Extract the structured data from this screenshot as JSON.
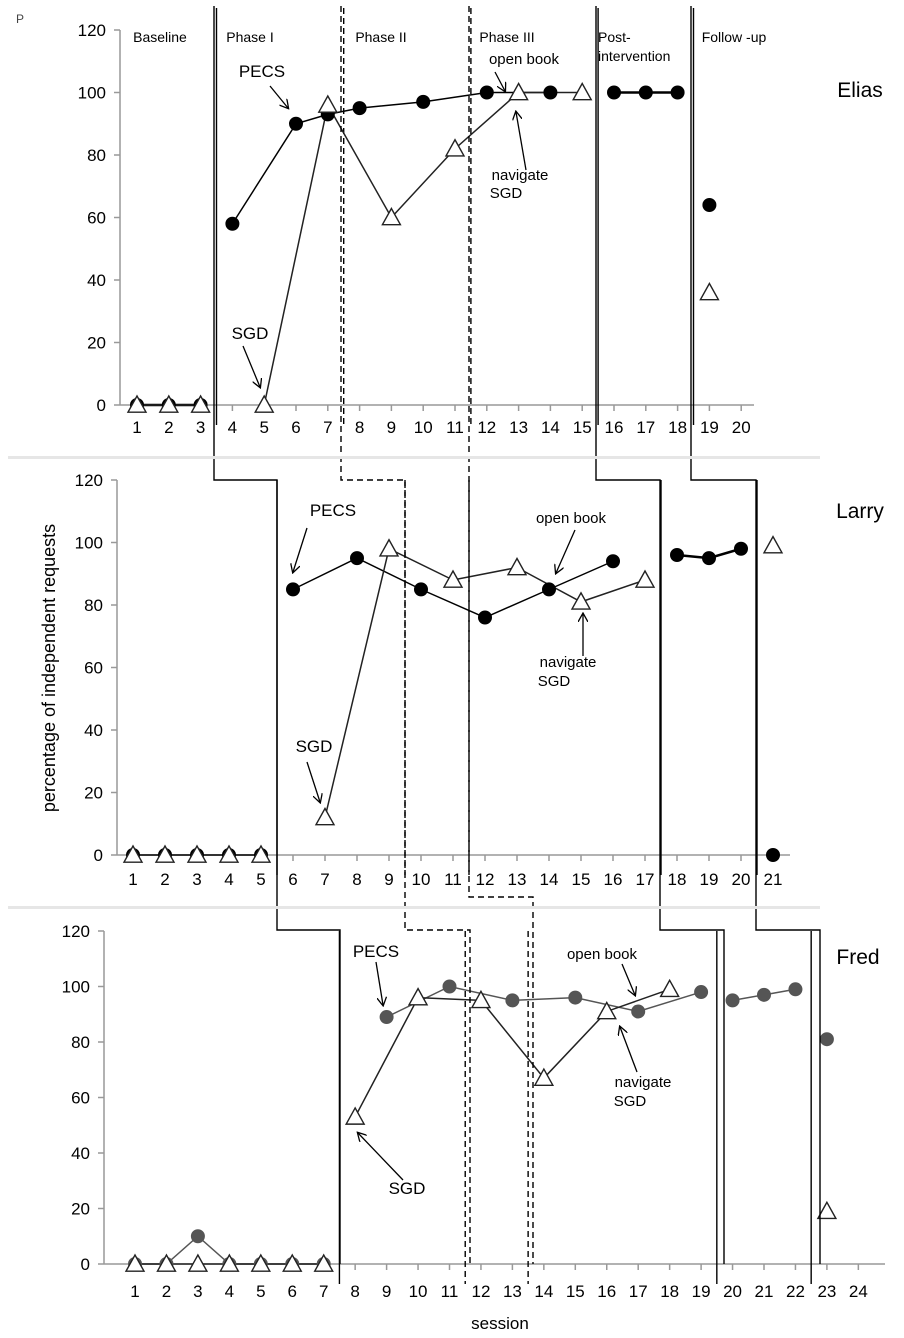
{
  "corner_mark": "P",
  "ylabel": "percentage of independent requests",
  "xlabel": "session",
  "phase_labels": [
    {
      "text": "Baseline"
    },
    {
      "text": "Phase I"
    },
    {
      "text": "Phase II"
    },
    {
      "text": "Phase III"
    },
    {
      "text": "Post-",
      "text2": "intervention"
    },
    {
      "text": "Follow -up"
    }
  ],
  "chart_data": [
    {
      "type": "line",
      "participant": "Elias",
      "ylim": [
        0,
        120
      ],
      "yticks": [
        0,
        20,
        40,
        60,
        80,
        100,
        120
      ],
      "sessions": [
        1,
        2,
        3,
        4,
        5,
        6,
        7,
        8,
        9,
        10,
        11,
        12,
        13,
        14,
        15,
        16,
        17,
        18,
        19,
        20
      ],
      "series": [
        {
          "name": "PECS",
          "marker": "circle",
          "color": "#000000",
          "segments": [
            [
              [
                1,
                0
              ],
              [
                2,
                0
              ],
              [
                3,
                0
              ]
            ],
            [
              [
                4,
                58
              ],
              [
                6,
                90
              ],
              [
                7,
                93
              ],
              [
                8,
                95
              ],
              [
                10,
                97
              ],
              [
                12,
                100
              ],
              [
                14,
                100
              ]
            ],
            [
              [
                16,
                100
              ],
              [
                17,
                100
              ],
              [
                18,
                100
              ]
            ],
            [
              [
                19,
                64
              ]
            ]
          ]
        },
        {
          "name": "SGD",
          "marker": "triangle",
          "segments": [
            [
              [
                1,
                0
              ],
              [
                2,
                0
              ],
              [
                3,
                0
              ]
            ],
            [
              [
                5,
                0
              ],
              [
                7,
                96
              ],
              [
                9,
                60
              ],
              [
                11,
                82
              ],
              [
                13,
                100
              ],
              [
                15,
                100
              ]
            ],
            [
              [
                19,
                36
              ]
            ]
          ]
        }
      ],
      "phase_changes": [
        {
          "after": 3.5,
          "style": "solid"
        },
        {
          "after": 7.5,
          "style": "dashed"
        },
        {
          "after": 11.5,
          "style": "dashed"
        },
        {
          "after": 15.5,
          "style": "solid"
        },
        {
          "after": 18.5,
          "style": "solid"
        }
      ],
      "annotations": [
        {
          "text": "PECS"
        },
        {
          "text": "SGD"
        },
        {
          "text": "open book"
        },
        {
          "text": "navigate"
        },
        {
          "text": "SGD"
        }
      ]
    },
    {
      "type": "line",
      "participant": "Larry",
      "ylim": [
        0,
        120
      ],
      "yticks": [
        0,
        20,
        40,
        60,
        80,
        100,
        120
      ],
      "sessions": [
        1,
        2,
        3,
        4,
        5,
        6,
        7,
        8,
        9,
        10,
        11,
        12,
        13,
        14,
        15,
        16,
        17,
        18,
        19,
        20,
        21
      ],
      "series": [
        {
          "name": "PECS",
          "marker": "circle",
          "color": "#000000",
          "segments": [
            [
              [
                1,
                0
              ],
              [
                2,
                0
              ],
              [
                3,
                0
              ],
              [
                4,
                0
              ],
              [
                5,
                0
              ]
            ],
            [
              [
                6,
                85
              ],
              [
                8,
                95
              ],
              [
                10,
                85
              ],
              [
                12,
                76
              ],
              [
                14,
                85
              ],
              [
                16,
                94
              ]
            ],
            [
              [
                18,
                96
              ],
              [
                19,
                95
              ],
              [
                20,
                98
              ]
            ],
            [
              [
                21,
                0
              ]
            ]
          ]
        },
        {
          "name": "SGD",
          "marker": "triangle",
          "segments": [
            [
              [
                1,
                0
              ],
              [
                2,
                0
              ],
              [
                3,
                0
              ],
              [
                4,
                0
              ],
              [
                5,
                0
              ]
            ],
            [
              [
                7,
                12
              ],
              [
                9,
                98
              ],
              [
                11,
                88
              ],
              [
                13,
                92
              ],
              [
                15,
                81
              ],
              [
                17,
                88
              ]
            ],
            [
              [
                21,
                99
              ]
            ]
          ]
        }
      ],
      "phase_changes": [
        {
          "after": 5.5,
          "style": "solid"
        },
        {
          "after": 9.5,
          "style": "dashed"
        },
        {
          "after": 11.5,
          "style": "dashed"
        },
        {
          "after": 17.5,
          "style": "solid"
        },
        {
          "after": 20.5,
          "style": "solid"
        }
      ],
      "annotations": [
        {
          "text": "PECS"
        },
        {
          "text": "SGD"
        },
        {
          "text": "open book"
        },
        {
          "text": "navigate"
        },
        {
          "text": "SGD"
        }
      ]
    },
    {
      "type": "line",
      "participant": "Fred",
      "ylim": [
        0,
        120
      ],
      "yticks": [
        0,
        20,
        40,
        60,
        80,
        100,
        120
      ],
      "sessions": [
        1,
        2,
        3,
        4,
        5,
        6,
        7,
        8,
        9,
        10,
        11,
        12,
        13,
        14,
        15,
        16,
        17,
        18,
        19,
        20,
        21,
        22,
        23,
        24
      ],
      "series": [
        {
          "name": "PECS",
          "marker": "circle",
          "color": "#555555",
          "segments": [
            [
              [
                1,
                0
              ],
              [
                2,
                0
              ],
              [
                3,
                10
              ],
              [
                4,
                0
              ],
              [
                5,
                0
              ],
              [
                6,
                0
              ],
              [
                7,
                0
              ]
            ],
            [
              [
                9,
                89
              ],
              [
                11,
                100
              ],
              [
                13,
                95
              ],
              [
                15,
                96
              ],
              [
                17,
                91
              ],
              [
                19,
                98
              ]
            ],
            [
              [
                20,
                95
              ],
              [
                21,
                97
              ],
              [
                22,
                99
              ]
            ],
            [
              [
                23,
                81
              ]
            ]
          ]
        },
        {
          "name": "SGD",
          "marker": "triangle",
          "segments": [
            [
              [
                1,
                0
              ],
              [
                2,
                0
              ],
              [
                3,
                0
              ],
              [
                4,
                0
              ],
              [
                5,
                0
              ],
              [
                6,
                0
              ],
              [
                7,
                0
              ]
            ],
            [
              [
                8,
                53
              ],
              [
                10,
                96
              ],
              [
                12,
                95
              ],
              [
                14,
                67
              ],
              [
                16,
                91
              ],
              [
                18,
                99
              ]
            ],
            [
              [
                23,
                19
              ]
            ]
          ]
        }
      ],
      "phase_changes": [
        {
          "after": 7.5,
          "style": "solid"
        },
        {
          "after": 11.5,
          "style": "dashed"
        },
        {
          "after": 13.5,
          "style": "dashed"
        },
        {
          "after": 19.5,
          "style": "solid"
        },
        {
          "after": 22.5,
          "style": "solid"
        }
      ],
      "annotations": [
        {
          "text": "PECS"
        },
        {
          "text": "SGD"
        },
        {
          "text": "open book"
        },
        {
          "text": "navigate"
        },
        {
          "text": "SGD"
        }
      ]
    }
  ]
}
